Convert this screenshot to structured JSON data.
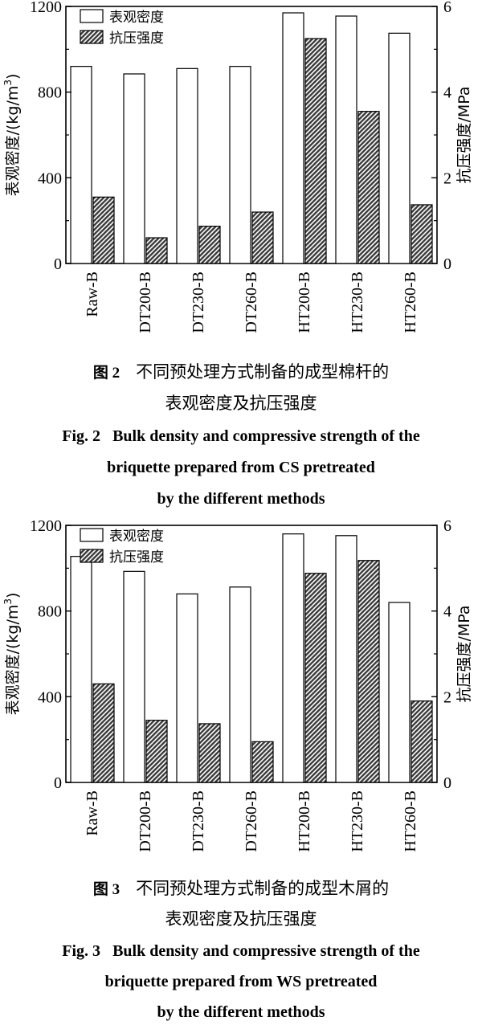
{
  "colors": {
    "density_fill": "#ffffff",
    "strength_fill": "#3a3a3a",
    "axis": "#000000"
  },
  "figures": [
    {
      "caption_cn_num": "图 2",
      "caption_cn_line1": "不同预处理方式制备的成型棉杆的",
      "caption_cn_line2": "表观密度及抗压强度",
      "caption_en_num": "Fig. 2",
      "caption_en_line1": "Bulk density and compressive strength of the",
      "caption_en_line2": "briquette prepared from CS pretreated",
      "caption_en_line3": "by the different methods"
    },
    {
      "caption_cn_num": "图 3",
      "caption_cn_line1": "不同预处理方式制备的成型木屑的",
      "caption_cn_line2": "表观密度及抗压强度",
      "caption_en_num": "Fig. 3",
      "caption_en_line1": "Bulk density and compressive strength of the",
      "caption_en_line2": "briquette prepared from WS pretreated",
      "caption_en_line3": "by the different methods"
    }
  ],
  "chart_data": [
    {
      "type": "bar",
      "categories": [
        "Raw-B",
        "DT200-B",
        "DT230-B",
        "DT260-B",
        "HT200-B",
        "HT230-B",
        "HT260-B"
      ],
      "series": [
        {
          "name": "表观密度",
          "axis": "left",
          "values": [
            920,
            885,
            910,
            920,
            1170,
            1155,
            1075
          ]
        },
        {
          "name": "抗压强度",
          "axis": "right",
          "values": [
            1.55,
            0.6,
            0.87,
            1.2,
            5.25,
            3.55,
            1.37
          ]
        }
      ],
      "ylabel_left": "表观密度/(kg/m³)",
      "ylabel_left_main": "表观密度/(kg/m",
      "ylabel_left_sup": "3",
      "ylabel_left_tail": ")",
      "ylabel_right": "抗压强度/MPa",
      "ylim_left": [
        0,
        1200
      ],
      "ylim_right": [
        0,
        6
      ],
      "yticks_left": [
        "0",
        "400",
        "800",
        "1200"
      ],
      "yticks_right": [
        "0",
        "2",
        "4",
        "6"
      ],
      "legend": "top-left"
    },
    {
      "type": "bar",
      "categories": [
        "Raw-B",
        "DT200-B",
        "DT230-B",
        "DT260-B",
        "HT200-B",
        "HT230-B",
        "HT260-B"
      ],
      "series": [
        {
          "name": "表观密度",
          "axis": "left",
          "values": [
            1055,
            985,
            880,
            912,
            1160,
            1152,
            840
          ]
        },
        {
          "name": "抗压强度",
          "axis": "right",
          "values": [
            2.3,
            1.45,
            1.37,
            0.95,
            4.88,
            5.18,
            1.9
          ]
        }
      ],
      "ylabel_left": "表观密度/(kg/m³)",
      "ylabel_left_main": "表观密度/(kg/m",
      "ylabel_left_sup": "3",
      "ylabel_left_tail": ")",
      "ylabel_right": "抗压强度/MPa",
      "ylim_left": [
        0,
        1200
      ],
      "ylim_right": [
        0,
        6
      ],
      "yticks_left": [
        "0",
        "400",
        "800",
        "1200"
      ],
      "yticks_right": [
        "0",
        "2",
        "4",
        "6"
      ],
      "legend": "top-left"
    }
  ]
}
